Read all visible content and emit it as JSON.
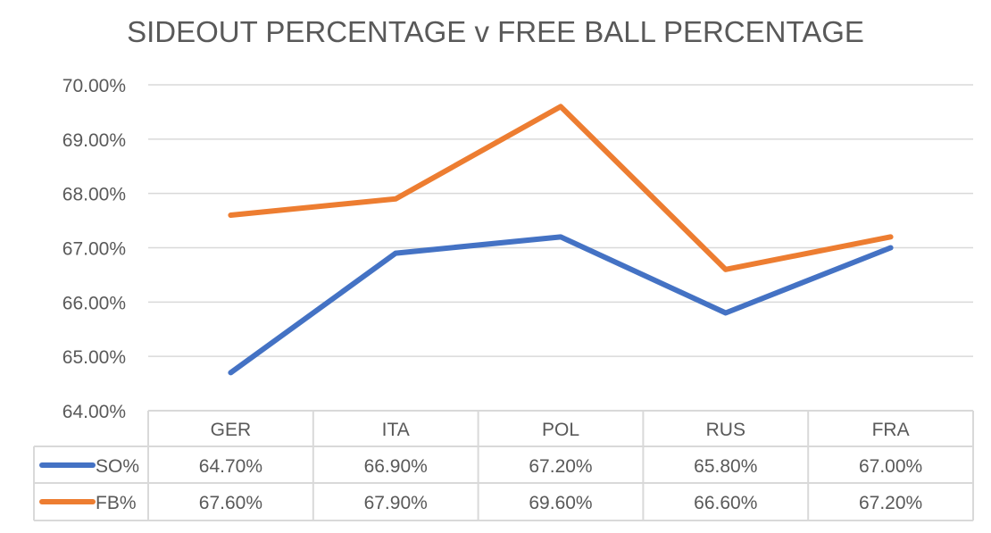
{
  "chart_data": {
    "type": "line",
    "title": "SIDEOUT PERCENTAGE v FREE BALL PERCENTAGE",
    "categories": [
      "GER",
      "ITA",
      "POL",
      "RUS",
      "FRA"
    ],
    "series": [
      {
        "name": "SO%",
        "values": [
          64.7,
          66.9,
          67.2,
          65.8,
          67.0
        ],
        "labels": [
          "64.70%",
          "66.90%",
          "67.20%",
          "65.80%",
          "67.00%"
        ],
        "color": "#4472C4"
      },
      {
        "name": "FB%",
        "values": [
          67.6,
          67.9,
          69.6,
          66.6,
          67.2
        ],
        "labels": [
          "67.60%",
          "67.90%",
          "69.60%",
          "66.60%",
          "67.20%"
        ],
        "color": "#ED7D31"
      }
    ],
    "ylim": [
      64,
      70
    ],
    "yticks": [
      "64.00%",
      "65.00%",
      "66.00%",
      "67.00%",
      "68.00%",
      "69.00%",
      "70.00%"
    ],
    "grid": true,
    "legend": "data-table"
  }
}
